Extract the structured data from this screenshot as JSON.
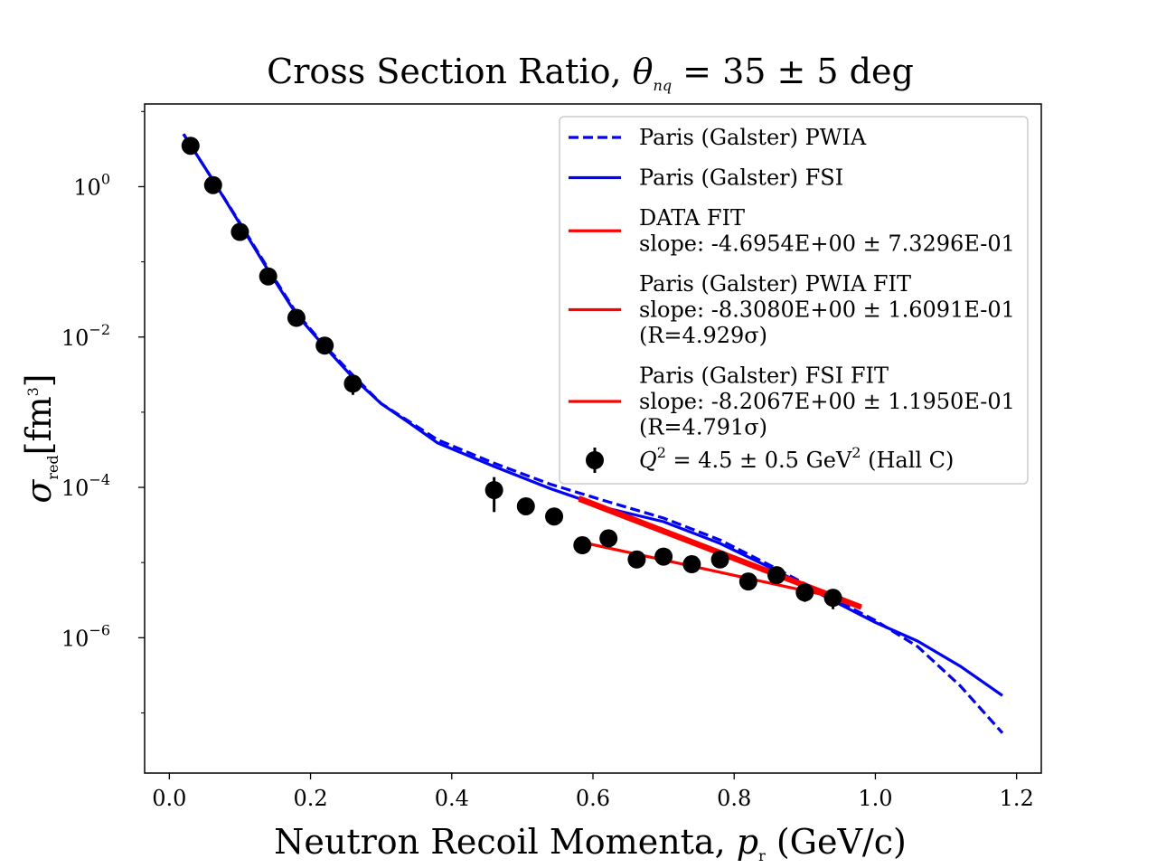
{
  "chart_data": {
    "type": "line",
    "title": "Cross Section Ratio, θnq = 35 ± 5 deg",
    "title_parts": {
      "main": "Cross Section Ratio, ",
      "symbol": "θ",
      "sub": "nq",
      "rest": " = 35 ± 5 deg"
    },
    "xlabel": "Neutron Recoil Momenta, pr (GeV/c)",
    "xlabel_parts": {
      "main": "Neutron Recoil Momenta, ",
      "symbol": "p",
      "sub": "r",
      "rest": " (GeV/c)"
    },
    "ylabel": "σred[fm3]",
    "ylabel_parts": {
      "symbol": "σ",
      "sub": "red",
      "unit": "[fm",
      "sup": "3",
      "close": "]"
    },
    "xlim": [
      -0.035,
      1.235
    ],
    "ylim_log10": [
      -7.8,
      1.1
    ],
    "yscale": "log",
    "grid": false,
    "legend_position": "top-right",
    "x_ticks": [
      {
        "value": 0.0,
        "label": "0.0"
      },
      {
        "value": 0.2,
        "label": "0.2"
      },
      {
        "value": 0.4,
        "label": "0.4"
      },
      {
        "value": 0.6,
        "label": "0.6"
      },
      {
        "value": 0.8,
        "label": "0.8"
      },
      {
        "value": 1.0,
        "label": "1.0"
      },
      {
        "value": 1.2,
        "label": "1.2"
      }
    ],
    "y_ticks": [
      {
        "exp": 0,
        "base": "10",
        "sup": "0"
      },
      {
        "exp": -2,
        "base": "10",
        "sup": "−2"
      },
      {
        "exp": -4,
        "base": "10",
        "sup": "−4"
      },
      {
        "exp": -6,
        "base": "10",
        "sup": "−6"
      }
    ],
    "series": [
      {
        "name": "Paris (Galster) PWIA",
        "kind": "line",
        "dash": true,
        "color": "#0000ff",
        "x": [
          0.02,
          0.06,
          0.1,
          0.14,
          0.18,
          0.22,
          0.26,
          0.3,
          0.34,
          0.38,
          0.46,
          0.54,
          0.62,
          0.7,
          0.78,
          0.86,
          0.94,
          1.0,
          1.06,
          1.12,
          1.18
        ],
        "y": [
          5.0,
          1.3,
          0.33,
          0.081,
          0.021,
          0.0077,
          0.0031,
          0.0013,
          0.00075,
          0.00043,
          0.00021,
          0.00011,
          6.5e-05,
          3.9e-05,
          2e-05,
          8.3e-06,
          3.3e-06,
          1.7e-06,
          7.6e-07,
          2.3e-07,
          5.4e-08
        ]
      },
      {
        "name": "Paris (Galster) FSI",
        "kind": "line",
        "dash": false,
        "color": "#0000ff",
        "x": [
          0.02,
          0.06,
          0.1,
          0.14,
          0.18,
          0.22,
          0.26,
          0.3,
          0.34,
          0.38,
          0.46,
          0.54,
          0.62,
          0.7,
          0.78,
          0.86,
          0.94,
          1.0,
          1.06,
          1.12,
          1.18
        ],
        "y": [
          5.0,
          1.3,
          0.32,
          0.077,
          0.02,
          0.0074,
          0.0029,
          0.0013,
          0.00072,
          0.00039,
          0.00019,
          9.6e-05,
          5.3e-05,
          3.5e-05,
          1.8e-05,
          7.8e-06,
          3.1e-06,
          1.6e-06,
          9e-07,
          4.2e-07,
          1.7e-07
        ]
      },
      {
        "name": "DATA FIT",
        "slope_text": "slope: -4.6954E+00 ± 7.3296E-01",
        "kind": "fit",
        "color": "#ff0000",
        "x": [
          0.58,
          0.94
        ],
        "y": [
          1.9e-05,
          3.5e-06
        ]
      },
      {
        "name": "Paris (Galster) PWIA FIT",
        "slope_text": "slope: -8.3080E+00 ± 1.6091E-01",
        "r_text": "(R=4.929σ)",
        "kind": "fit",
        "color": "#ff0000",
        "x": [
          0.58,
          0.98
        ],
        "y": [
          7.3e-05,
          2.6e-06
        ]
      },
      {
        "name": "Paris (Galster) FSI FIT",
        "slope_text": "slope: -8.2067E+00 ± 1.1950E-01",
        "r_text": "(R=4.791σ)",
        "kind": "fit",
        "color": "#ff0000",
        "x": [
          0.58,
          0.98
        ],
        "y": [
          6.9e-05,
          2.5e-06
        ]
      },
      {
        "name": "Q2 = 4.5 ± 0.5 GeV2 (Hall C)",
        "kind": "points",
        "color": "#000000",
        "x": [
          0.03,
          0.062,
          0.1,
          0.14,
          0.18,
          0.22,
          0.26,
          0.46,
          0.505,
          0.545,
          0.585,
          0.622,
          0.662,
          0.7,
          0.74,
          0.78,
          0.82,
          0.86,
          0.9,
          0.94
        ],
        "y": [
          3.5,
          1.05,
          0.25,
          0.064,
          0.018,
          0.0077,
          0.0024,
          9.2e-05,
          5.6e-05,
          4.1e-05,
          1.7e-05,
          2.1e-05,
          1.1e-05,
          1.2e-05,
          9.5e-06,
          1.1e-05,
          5.6e-06,
          6.8e-06,
          4e-06,
          3.4e-06
        ],
        "yerr_lo": [
          0.0,
          0.0,
          0.0,
          0.0,
          0.0,
          0.0,
          0.0007,
          4.5e-05,
          0.0,
          0.0,
          0.0,
          0.0,
          0.0,
          0.0,
          0.0,
          0.0,
          0.0,
          0.0,
          1e-06,
          1e-06
        ],
        "yerr_hi": [
          0.0,
          0.0,
          0.0,
          0.0,
          0.0,
          0.0,
          0.0007,
          4.5e-05,
          0.0,
          0.0,
          0.0,
          0.0,
          0.0,
          0.0,
          0.0,
          0.0,
          0.0,
          0.0,
          1e-06,
          1e-06
        ]
      }
    ],
    "legend": {
      "entries": [
        {
          "series": 0,
          "lines": [
            "Paris (Galster) PWIA"
          ]
        },
        {
          "series": 1,
          "lines": [
            "Paris (Galster) FSI"
          ]
        },
        {
          "series": 2,
          "lines": [
            "DATA FIT",
            "slope: -4.6954E+00 ± 7.3296E-01"
          ]
        },
        {
          "series": 3,
          "lines": [
            "Paris (Galster) PWIA FIT",
            "slope: -8.3080E+00 ± 1.6091E-01",
            "(R=4.929σ)"
          ]
        },
        {
          "series": 4,
          "lines": [
            "Paris (Galster) FSI FIT",
            "slope: -8.2067E+00 ± 1.1950E-01",
            "(R=4.791σ)"
          ]
        }
      ],
      "points_entry": {
        "series": 5,
        "q": "Q",
        "q_sup": "2",
        "mid": " = 4.5 ± 0.5 GeV",
        "mid_sup": "2",
        "end": " (Hall C)"
      }
    }
  }
}
